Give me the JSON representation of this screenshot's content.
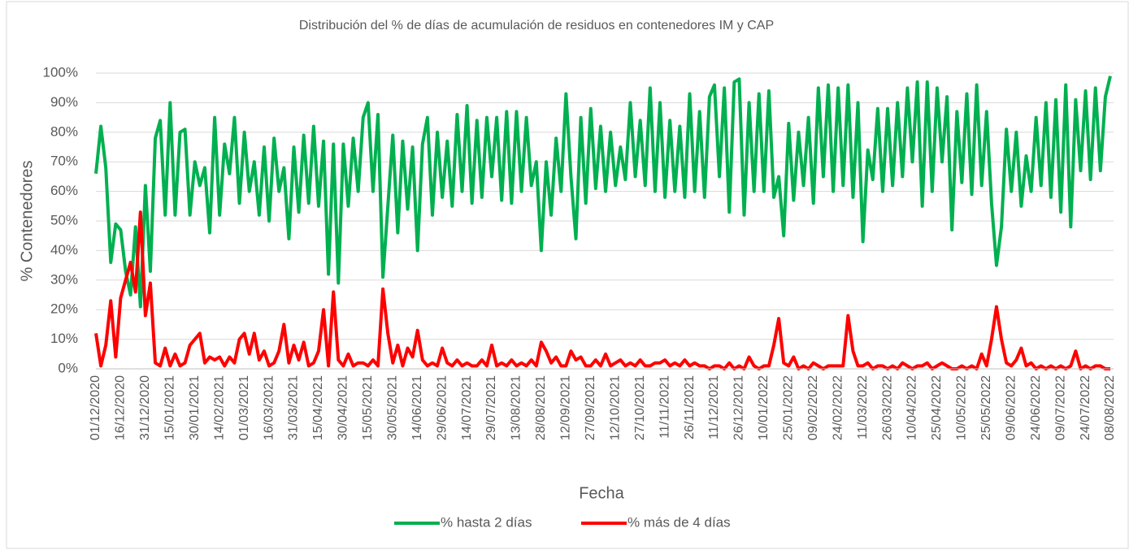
{
  "chart_data": {
    "type": "line",
    "title": "Distribución del % de días de acumulación de residuos en contenedores IM y CAP",
    "x_label": "Fecha",
    "y_label": "% Contenedores",
    "grid": true,
    "legend": "bottom",
    "x": [
      "01/12/2020",
      "04/12/2020",
      "07/12/2020",
      "10/12/2020",
      "13/12/2020",
      "16/12/2020",
      "19/12/2020",
      "22/12/2020",
      "25/12/2020",
      "28/12/2020",
      "31/12/2020",
      "03/01/2021",
      "06/01/2021",
      "09/01/2021",
      "12/01/2021",
      "15/01/2021",
      "18/01/2021",
      "21/01/2021",
      "24/01/2021",
      "27/01/2021",
      "30/01/2021",
      "02/02/2021",
      "05/02/2021",
      "08/02/2021",
      "11/02/2021",
      "14/02/2021",
      "17/02/2021",
      "20/02/2021",
      "23/02/2021",
      "26/02/2021",
      "01/03/2021",
      "04/03/2021",
      "07/03/2021",
      "10/03/2021",
      "13/03/2021",
      "16/03/2021",
      "19/03/2021",
      "22/03/2021",
      "25/03/2021",
      "28/03/2021",
      "31/03/2021",
      "03/04/2021",
      "06/04/2021",
      "09/04/2021",
      "12/04/2021",
      "15/04/2021",
      "18/04/2021",
      "21/04/2021",
      "24/04/2021",
      "27/04/2021",
      "30/04/2021",
      "03/05/2021",
      "06/05/2021",
      "09/05/2021",
      "12/05/2021",
      "15/05/2021",
      "18/05/2021",
      "21/05/2021",
      "24/05/2021",
      "27/05/2021",
      "30/05/2021",
      "02/06/2021",
      "05/06/2021",
      "08/06/2021",
      "11/06/2021",
      "14/06/2021",
      "17/06/2021",
      "20/06/2021",
      "23/06/2021",
      "26/06/2021",
      "29/06/2021",
      "02/07/2021",
      "05/07/2021",
      "08/07/2021",
      "11/07/2021",
      "14/07/2021",
      "17/07/2021",
      "20/07/2021",
      "23/07/2021",
      "26/07/2021",
      "29/07/2021",
      "01/08/2021",
      "04/08/2021",
      "07/08/2021",
      "10/08/2021",
      "13/08/2021",
      "16/08/2021",
      "19/08/2021",
      "22/08/2021",
      "25/08/2021",
      "28/08/2021",
      "31/08/2021",
      "03/09/2021",
      "06/09/2021",
      "09/09/2021",
      "12/09/2021",
      "15/09/2021",
      "18/09/2021",
      "21/09/2021",
      "24/09/2021",
      "27/09/2021",
      "30/09/2021",
      "03/10/2021",
      "06/10/2021",
      "09/10/2021",
      "12/10/2021",
      "15/10/2021",
      "18/10/2021",
      "21/10/2021",
      "24/10/2021",
      "27/10/2021",
      "30/10/2021",
      "02/11/2021",
      "05/11/2021",
      "08/11/2021",
      "11/11/2021",
      "14/11/2021",
      "17/11/2021",
      "20/11/2021",
      "23/11/2021",
      "26/11/2021",
      "29/11/2021",
      "02/12/2021",
      "05/12/2021",
      "08/12/2021",
      "11/12/2021",
      "14/12/2021",
      "17/12/2021",
      "20/12/2021",
      "23/12/2021",
      "26/12/2021",
      "29/12/2021",
      "01/01/2022",
      "04/01/2022",
      "07/01/2022",
      "10/01/2022",
      "13/01/2022",
      "16/01/2022",
      "19/01/2022",
      "22/01/2022",
      "25/01/2022",
      "28/01/2022",
      "31/01/2022",
      "03/02/2022",
      "06/02/2022",
      "09/02/2022",
      "12/02/2022",
      "15/02/2022",
      "18/02/2022",
      "21/02/2022",
      "24/02/2022",
      "27/02/2022",
      "02/03/2022",
      "05/03/2022",
      "08/03/2022",
      "11/03/2022",
      "14/03/2022",
      "17/03/2022",
      "20/03/2022",
      "23/03/2022",
      "26/03/2022",
      "29/03/2022",
      "01/04/2022",
      "04/04/2022",
      "07/04/2022",
      "10/04/2022",
      "13/04/2022",
      "16/04/2022",
      "19/04/2022",
      "22/04/2022",
      "25/04/2022",
      "28/04/2022",
      "01/05/2022",
      "04/05/2022",
      "07/05/2022",
      "10/05/2022",
      "13/05/2022",
      "16/05/2022",
      "19/05/2022",
      "22/05/2022",
      "25/05/2022",
      "28/05/2022",
      "31/05/2022",
      "03/06/2022",
      "06/06/2022",
      "09/06/2022",
      "12/06/2022",
      "15/06/2022",
      "18/06/2022",
      "21/06/2022",
      "24/06/2022",
      "27/06/2022",
      "30/06/2022",
      "03/07/2022",
      "06/07/2022",
      "09/07/2022",
      "12/07/2022",
      "15/07/2022",
      "18/07/2022",
      "21/07/2022",
      "24/07/2022",
      "27/07/2022",
      "30/07/2022",
      "02/08/2022",
      "05/08/2022",
      "08/08/2022"
    ],
    "xticks": [
      "01/12/2020",
      "16/12/2020",
      "31/12/2020",
      "15/01/2021",
      "30/01/2021",
      "14/02/2021",
      "01/03/2021",
      "16/03/2021",
      "31/03/2021",
      "15/04/2021",
      "30/04/2021",
      "15/05/2021",
      "30/05/2021",
      "14/06/2021",
      "29/06/2021",
      "14/07/2021",
      "29/07/2021",
      "13/08/2021",
      "28/08/2021",
      "12/09/2021",
      "27/09/2021",
      "12/10/2021",
      "27/10/2021",
      "11/11/2021",
      "26/11/2021",
      "11/12/2021",
      "26/12/2021",
      "10/01/2022",
      "25/01/2022",
      "09/02/2022",
      "24/02/2022",
      "11/03/2022",
      "26/03/2022",
      "10/04/2022",
      "25/04/2022",
      "10/05/2022",
      "25/05/2022",
      "09/06/2022",
      "24/06/2022",
      "09/07/2022",
      "24/07/2022",
      "08/08/2022"
    ],
    "ylim": [
      0,
      100
    ],
    "yticks": [
      {
        "value": 0,
        "label": "0%"
      },
      {
        "value": 10,
        "label": "10%"
      },
      {
        "value": 20,
        "label": "20%"
      },
      {
        "value": 30,
        "label": "30%"
      },
      {
        "value": 40,
        "label": "40%"
      },
      {
        "value": 50,
        "label": "50%"
      },
      {
        "value": 60,
        "label": "60%"
      },
      {
        "value": 70,
        "label": "70%"
      },
      {
        "value": 80,
        "label": "80%"
      },
      {
        "value": 90,
        "label": "90%"
      },
      {
        "value": 100,
        "label": "100%"
      }
    ],
    "series": [
      {
        "name": "% hasta 2 días",
        "color": "#00b050",
        "values": [
          66,
          82,
          68,
          36,
          49,
          47,
          33,
          25,
          48,
          21,
          62,
          33,
          78,
          84,
          52,
          90,
          52,
          80,
          81,
          52,
          70,
          62,
          68,
          46,
          85,
          52,
          76,
          66,
          85,
          56,
          80,
          60,
          70,
          52,
          75,
          50,
          78,
          60,
          68,
          44,
          75,
          53,
          79,
          56,
          82,
          55,
          77,
          32,
          76,
          29,
          76,
          55,
          78,
          60,
          85,
          90,
          60,
          86,
          31,
          55,
          79,
          46,
          77,
          54,
          75,
          40,
          76,
          85,
          52,
          80,
          58,
          77,
          55,
          86,
          60,
          89,
          56,
          84,
          58,
          85,
          65,
          85,
          57,
          87,
          56,
          87,
          60,
          85,
          62,
          70,
          40,
          70,
          52,
          78,
          60,
          93,
          65,
          44,
          85,
          56,
          88,
          61,
          82,
          60,
          80,
          62,
          75,
          64,
          90,
          65,
          84,
          62,
          95,
          60,
          90,
          58,
          84,
          60,
          82,
          58,
          93,
          60,
          87,
          58,
          92,
          96,
          65,
          95,
          53,
          97,
          98,
          52,
          90,
          60,
          93,
          60,
          94,
          58,
          65,
          45,
          83,
          57,
          80,
          62,
          85,
          56,
          95,
          65,
          96,
          60,
          95,
          62,
          96,
          58,
          90,
          43,
          74,
          64,
          88,
          60,
          88,
          62,
          90,
          65,
          95,
          70,
          97,
          55,
          97,
          60,
          95,
          70,
          92,
          47,
          87,
          63,
          93,
          59,
          96,
          62,
          87,
          56,
          35,
          48,
          81,
          60,
          80,
          55,
          72,
          60,
          85,
          62,
          90,
          58,
          91,
          53,
          96,
          48,
          91,
          67,
          94,
          64,
          95,
          67,
          92,
          99
        ]
      },
      {
        "name": "% más de 4 días",
        "color": "#ff0000",
        "values": [
          12,
          1,
          8,
          23,
          4,
          24,
          30,
          36,
          26,
          53,
          18,
          29,
          2,
          1,
          7,
          1,
          5,
          1,
          2,
          8,
          10,
          12,
          2,
          4,
          3,
          4,
          1,
          4,
          2,
          10,
          12,
          5,
          12,
          3,
          6,
          1,
          2,
          6,
          15,
          2,
          8,
          3,
          9,
          1,
          2,
          6,
          20,
          1,
          26,
          3,
          1,
          5,
          1,
          2,
          2,
          1,
          3,
          1,
          27,
          12,
          2,
          8,
          1,
          7,
          4,
          13,
          3,
          1,
          2,
          1,
          7,
          2,
          1,
          3,
          1,
          2,
          1,
          1,
          3,
          1,
          8,
          1,
          2,
          1,
          3,
          1,
          2,
          1,
          3,
          1,
          9,
          6,
          2,
          4,
          1,
          1,
          6,
          3,
          4,
          1,
          1,
          3,
          1,
          5,
          1,
          2,
          3,
          1,
          2,
          1,
          3,
          1,
          1,
          2,
          2,
          3,
          1,
          2,
          1,
          3,
          1,
          2,
          1,
          1,
          0,
          1,
          1,
          0,
          2,
          0,
          1,
          0,
          4,
          1,
          0,
          1,
          1,
          8,
          17,
          2,
          1,
          4,
          0,
          1,
          0,
          2,
          1,
          0,
          1,
          1,
          1,
          1,
          18,
          6,
          1,
          1,
          2,
          0,
          1,
          1,
          0,
          1,
          0,
          2,
          1,
          0,
          1,
          1,
          2,
          0,
          1,
          2,
          1,
          0,
          0,
          1,
          0,
          1,
          0,
          5,
          1,
          10,
          21,
          10,
          2,
          1,
          3,
          7,
          1,
          2,
          0,
          1,
          0,
          1,
          0,
          1,
          0,
          1,
          6,
          0,
          1,
          0,
          1,
          1,
          0,
          0
        ]
      }
    ]
  }
}
